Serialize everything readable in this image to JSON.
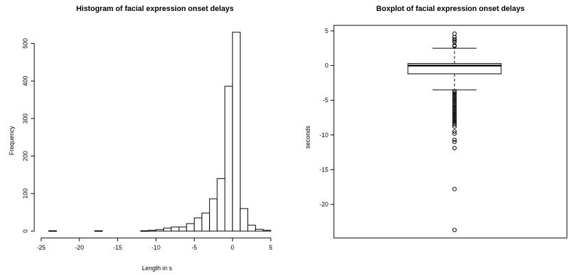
{
  "chart_data": [
    {
      "type": "histogram",
      "title": "Histogram of facial expression onset delays",
      "xlabel": "Length in s",
      "ylabel": "Frequency",
      "xlim": [
        -24,
        5
      ],
      "ylim": [
        0,
        530
      ],
      "x_ticks": [
        -25,
        -20,
        -15,
        -10,
        -5,
        0,
        5
      ],
      "x_tick_labels": [
        "-25",
        "-20",
        "-15",
        "-10",
        "-5",
        "0",
        "5"
      ],
      "y_ticks": [
        0,
        100,
        200,
        300,
        400,
        500
      ],
      "y_tick_labels": [
        "0",
        "100",
        "200",
        "300",
        "400",
        "500"
      ],
      "bin_width": 1,
      "bins": [
        {
          "x0": -24,
          "x1": -23,
          "count": 1
        },
        {
          "x0": -23,
          "x1": -22,
          "count": 0
        },
        {
          "x0": -22,
          "x1": -21,
          "count": 0
        },
        {
          "x0": -21,
          "x1": -20,
          "count": 0
        },
        {
          "x0": -20,
          "x1": -19,
          "count": 0
        },
        {
          "x0": -19,
          "x1": -18,
          "count": 0
        },
        {
          "x0": -18,
          "x1": -17,
          "count": 1
        },
        {
          "x0": -17,
          "x1": -16,
          "count": 0
        },
        {
          "x0": -16,
          "x1": -15,
          "count": 0
        },
        {
          "x0": -15,
          "x1": -14,
          "count": 0
        },
        {
          "x0": -14,
          "x1": -13,
          "count": 0
        },
        {
          "x0": -13,
          "x1": -12,
          "count": 0
        },
        {
          "x0": -12,
          "x1": -11,
          "count": 1
        },
        {
          "x0": -11,
          "x1": -10,
          "count": 2
        },
        {
          "x0": -10,
          "x1": -9,
          "count": 4
        },
        {
          "x0": -9,
          "x1": -8,
          "count": 8
        },
        {
          "x0": -8,
          "x1": -7,
          "count": 11
        },
        {
          "x0": -7,
          "x1": -6,
          "count": 11
        },
        {
          "x0": -6,
          "x1": -5,
          "count": 20
        },
        {
          "x0": -5,
          "x1": -4,
          "count": 35
        },
        {
          "x0": -4,
          "x1": -3,
          "count": 48
        },
        {
          "x0": -3,
          "x1": -2,
          "count": 86
        },
        {
          "x0": -2,
          "x1": -1,
          "count": 140
        },
        {
          "x0": -1,
          "x1": 0,
          "count": 386
        },
        {
          "x0": 0,
          "x1": 1,
          "count": 530
        },
        {
          "x0": 1,
          "x1": 2,
          "count": 60
        },
        {
          "x0": 2,
          "x1": 3,
          "count": 16
        },
        {
          "x0": 3,
          "x1": 4,
          "count": 5
        },
        {
          "x0": 4,
          "x1": 5,
          "count": 2
        }
      ]
    },
    {
      "type": "boxplot",
      "title": "Boxplot of facial expression onset delays",
      "ylabel": "seconds",
      "ylim": [
        -24,
        5
      ],
      "y_ticks": [
        5,
        0,
        -5,
        -10,
        -15,
        -20
      ],
      "y_tick_labels": [
        "5",
        "0",
        "-5",
        "-10",
        "-15",
        "-20"
      ],
      "box": {
        "whisker_low": -3.5,
        "q1": -1.2,
        "median": 0,
        "q3": 0.3,
        "whisker_high": 2.5
      },
      "outliers": [
        4.6,
        4.1,
        3.8,
        3.6,
        3.4,
        2.9,
        2.8,
        -3.7,
        -3.9,
        -4.1,
        -4.3,
        -4.5,
        -4.7,
        -4.9,
        -5.1,
        -5.3,
        -5.5,
        -5.7,
        -5.9,
        -6.1,
        -6.3,
        -6.5,
        -6.7,
        -6.9,
        -7.1,
        -7.3,
        -7.5,
        -7.7,
        -7.9,
        -8.1,
        -8.3,
        -8.5,
        -8.8,
        -9.5,
        -9.8,
        -10.7,
        -11.0,
        -11.9,
        -17.8,
        -23.7
      ]
    }
  ]
}
